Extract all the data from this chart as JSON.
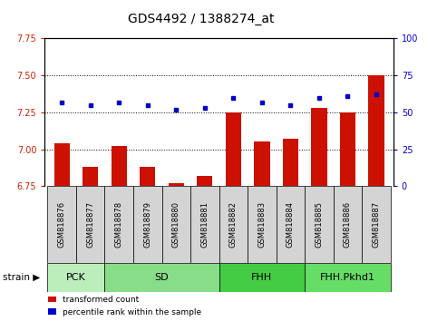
{
  "title": "GDS4492 / 1388274_at",
  "samples": [
    "GSM818876",
    "GSM818877",
    "GSM818878",
    "GSM818879",
    "GSM818880",
    "GSM818881",
    "GSM818882",
    "GSM818883",
    "GSM818884",
    "GSM818885",
    "GSM818886",
    "GSM818887"
  ],
  "red_values": [
    7.04,
    6.88,
    7.02,
    6.88,
    6.77,
    6.82,
    7.25,
    7.05,
    7.07,
    7.28,
    7.25,
    7.5
  ],
  "blue_values": [
    57,
    55,
    57,
    55,
    52,
    53,
    60,
    57,
    55,
    60,
    61,
    62
  ],
  "ylim_left": [
    6.75,
    7.75
  ],
  "ylim_right": [
    0,
    100
  ],
  "yticks_left": [
    6.75,
    7.0,
    7.25,
    7.5,
    7.75
  ],
  "yticks_right": [
    0,
    25,
    50,
    75,
    100
  ],
  "hlines": [
    7.0,
    7.25,
    7.5
  ],
  "groups": [
    {
      "label": "PCK",
      "start": 0,
      "end": 2,
      "color": "#bbeebb"
    },
    {
      "label": "SD",
      "start": 2,
      "end": 6,
      "color": "#88dd88"
    },
    {
      "label": "FHH",
      "start": 6,
      "end": 9,
      "color": "#44cc44"
    },
    {
      "label": "FHH.Pkhd1",
      "start": 9,
      "end": 12,
      "color": "#66dd66"
    }
  ],
  "bar_color": "#cc1100",
  "dot_color": "#0000cc",
  "left_tick_color": "#cc2200",
  "right_tick_color": "#0000cc",
  "title_fontsize": 10,
  "tick_fontsize": 7,
  "sample_fontsize": 6,
  "group_fontsize": 8
}
